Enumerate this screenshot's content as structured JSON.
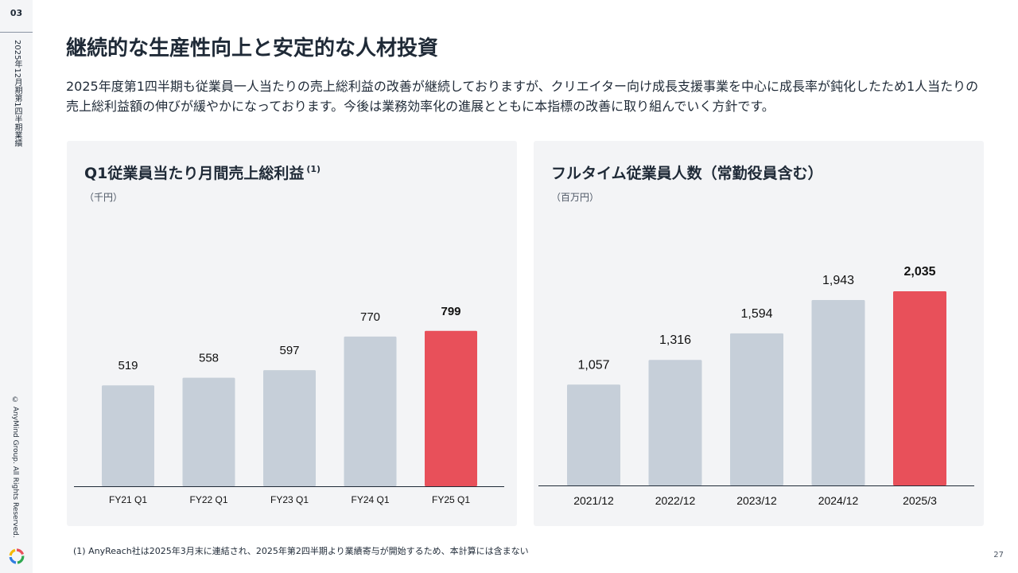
{
  "sidebar": {
    "page_number": "03",
    "report_label": "2025年12月期第1四半期業績",
    "copyright": "© AnyMind Group. All Rights Reserved."
  },
  "title": "継続的な生産性向上と安定的な人材投資",
  "lead": "2025年度第1四半期も従業員一人当たりの売上総利益の改善が継続しておりますが、クリエイター向け成長支援事業を中心に成長率が鈍化したため1人当たりの売上総利益額の伸びが緩やかになっております。今後は業務効率化の進展とともに本指標の改善に取り組んでいく方針です。",
  "colors": {
    "bar": "#c6cfd9",
    "highlight": "#e8505a",
    "panel": "#f3f4f6",
    "text": "#1f2a37"
  },
  "chart_data": [
    {
      "type": "bar",
      "title": "Q1従業員当たり月間売上総利益",
      "title_note": "(1)",
      "unit": "（千円）",
      "categories": [
        "FY21 Q1",
        "FY22 Q1",
        "FY23 Q1",
        "FY24 Q1",
        "FY25 Q1"
      ],
      "values": [
        519,
        558,
        597,
        770,
        799
      ],
      "value_labels": [
        "519",
        "558",
        "597",
        "770",
        "799"
      ],
      "highlight_index": 4,
      "grid": false
    },
    {
      "type": "bar",
      "title": "フルタイム従業員人数（常勤役員含む）",
      "unit": "（百万円）",
      "categories": [
        "2021/12",
        "2022/12",
        "2023/12",
        "2024/12",
        "2025/3"
      ],
      "values": [
        1057,
        1316,
        1594,
        1943,
        2035
      ],
      "value_labels": [
        "1,057",
        "1,316",
        "1,594",
        "1,943",
        "2,035"
      ],
      "highlight_index": 4,
      "grid": false
    }
  ],
  "footnote": "(1) AnyReach社は2025年3月末に連結され、2025年第2四半期より業績寄与が開始するため、本計算には含まない",
  "slide_number": "27"
}
